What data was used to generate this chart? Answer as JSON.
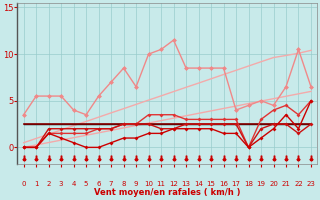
{
  "x": [
    0,
    1,
    2,
    3,
    4,
    5,
    6,
    7,
    8,
    9,
    10,
    11,
    12,
    13,
    14,
    15,
    16,
    17,
    18,
    19,
    20,
    21,
    22,
    23
  ],
  "line_pink_marker": [
    3.5,
    5.5,
    5.5,
    5.5,
    4.0,
    3.5,
    5.5,
    7.0,
    8.5,
    6.5,
    10.0,
    10.5,
    11.5,
    8.5,
    8.5,
    8.5,
    8.5,
    4.0,
    4.5,
    5.0,
    4.5,
    6.5,
    10.5,
    6.5
  ],
  "line_pink_trend_upper": [
    0.5,
    0.96,
    1.41,
    1.87,
    2.33,
    2.78,
    3.24,
    3.7,
    4.15,
    4.61,
    5.07,
    5.52,
    5.98,
    6.44,
    6.89,
    7.35,
    7.81,
    8.26,
    8.72,
    9.18,
    9.63,
    9.85,
    10.09,
    10.4
  ],
  "line_pink_trend_lower": [
    0.0,
    0.26,
    0.52,
    0.78,
    1.04,
    1.3,
    1.56,
    1.82,
    2.09,
    2.35,
    2.61,
    2.87,
    3.13,
    3.39,
    3.65,
    3.91,
    4.17,
    4.43,
    4.7,
    4.96,
    5.22,
    5.48,
    5.74,
    6.0
  ],
  "line_red_upper": [
    0.0,
    0.0,
    1.5,
    1.5,
    1.5,
    1.5,
    2.0,
    2.0,
    2.5,
    2.5,
    3.5,
    3.5,
    3.5,
    3.0,
    3.0,
    3.0,
    3.0,
    3.0,
    0.0,
    3.0,
    4.0,
    4.5,
    3.5,
    5.0
  ],
  "line_red_flat": [
    2.5,
    2.5,
    2.5,
    2.5,
    2.5,
    2.5,
    2.5,
    2.5,
    2.5,
    2.5,
    2.5,
    2.5,
    2.5,
    2.5,
    2.5,
    2.5,
    2.5,
    2.5,
    2.5,
    2.5,
    2.5,
    2.5,
    2.5,
    2.5
  ],
  "line_darkred_mid": [
    0.0,
    0.0,
    2.0,
    2.0,
    2.0,
    2.0,
    2.0,
    2.0,
    2.5,
    2.5,
    2.5,
    2.0,
    2.0,
    2.5,
    2.5,
    2.5,
    2.5,
    2.5,
    0.0,
    2.0,
    2.5,
    2.5,
    1.5,
    2.5
  ],
  "line_darkred_lower": [
    0.0,
    0.0,
    1.5,
    1.0,
    0.5,
    0.0,
    0.0,
    0.5,
    1.0,
    1.0,
    1.5,
    1.5,
    2.0,
    2.0,
    2.0,
    2.0,
    1.5,
    1.5,
    0.0,
    1.0,
    2.0,
    3.5,
    2.0,
    5.0
  ],
  "line_black": [
    2.5,
    2.5,
    2.5,
    2.5,
    2.5,
    2.5,
    2.5,
    2.5,
    2.5,
    2.5,
    2.5,
    2.5,
    2.5,
    2.5,
    2.5,
    2.5,
    2.5,
    2.5,
    2.5,
    2.5,
    2.5,
    2.5,
    2.5,
    2.5
  ],
  "wind_symbols_x": [
    0,
    1,
    2,
    3,
    4,
    5,
    6,
    7,
    8,
    9,
    10,
    11,
    12,
    13,
    14,
    15,
    16,
    17,
    18,
    19,
    20,
    21,
    22,
    23
  ],
  "xlabel": "Vent moyen/en rafales ( km/h )",
  "xlim": [
    -0.5,
    23.5
  ],
  "ylim": [
    -1.8,
    15.5
  ],
  "yticks": [
    0,
    5,
    10,
    15
  ],
  "xticks": [
    0,
    1,
    2,
    3,
    4,
    5,
    6,
    7,
    8,
    9,
    10,
    11,
    12,
    13,
    14,
    15,
    16,
    17,
    18,
    19,
    20,
    21,
    22,
    23
  ],
  "bg_color": "#c8eaea",
  "grid_color": "#99cccc",
  "text_color": "#cc0000",
  "color_pink_marker": "#f08888",
  "color_pink_trend": "#f4aaaa",
  "color_red_upper": "#e03333",
  "color_red_flat": "#880000",
  "color_darkred_mid": "#cc1111",
  "color_darkred_lower": "#cc0000",
  "color_black": "#000000"
}
